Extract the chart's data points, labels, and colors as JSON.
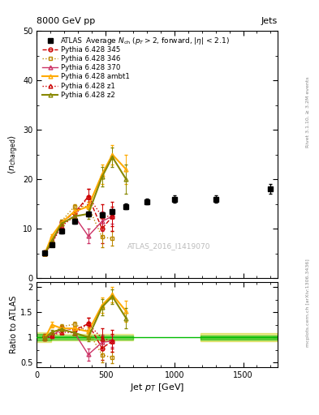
{
  "title_top": "8000 GeV pp",
  "title_right": "Jets",
  "plot_title": "Average N_{ch} (p_T>2, forward, |\\eta| < 2.1)",
  "ylabel_main": "\\langle n_{charged} \\rangle",
  "ylabel_ratio": "Ratio to ATLAS",
  "xlabel": "Jet p_{T} [GeV]",
  "watermark": "ATLAS_2016_I1419070",
  "right_label_top": "Rivet 3.1.10, ≥ 3.2M events",
  "right_label_bot": "mcplots.cern.ch [arXiv:1306.3436]",
  "atlas_x": [
    60,
    110,
    180,
    275,
    375,
    475,
    550,
    650,
    800,
    1000,
    1300,
    1700
  ],
  "atlas_y": [
    5.1,
    6.8,
    9.5,
    11.5,
    13.0,
    12.8,
    13.5,
    14.5,
    15.5,
    16.0,
    16.0,
    18.0
  ],
  "atlas_yerr": [
    0.3,
    0.4,
    0.5,
    0.5,
    0.5,
    0.5,
    0.5,
    0.6,
    0.6,
    0.7,
    0.8,
    1.0
  ],
  "py345_x": [
    60,
    110,
    180,
    275,
    375,
    475,
    550
  ],
  "py345_y": [
    5.2,
    7.2,
    11.3,
    13.2,
    16.5,
    10.0,
    12.5
  ],
  "py345_yerr": [
    0.2,
    0.3,
    0.4,
    0.5,
    1.5,
    3.0,
    2.0
  ],
  "py345_color": "#cc0000",
  "py345_marker": "o",
  "py345_style": "--",
  "py346_x": [
    60,
    110,
    180,
    275,
    375,
    475,
    550
  ],
  "py346_y": [
    5.2,
    7.2,
    11.5,
    14.5,
    14.5,
    8.3,
    8.0
  ],
  "py346_yerr": [
    0.2,
    0.3,
    0.4,
    0.5,
    1.0,
    2.0,
    1.5
  ],
  "py346_color": "#bb8800",
  "py346_marker": "s",
  "py346_style": ":",
  "py370_x": [
    60,
    110,
    180,
    275,
    375,
    475,
    550
  ],
  "py370_y": [
    5.0,
    7.0,
    11.0,
    12.5,
    8.5,
    11.5,
    12.5
  ],
  "py370_yerr": [
    0.2,
    0.3,
    0.4,
    0.5,
    1.5,
    2.0,
    1.5
  ],
  "py370_color": "#cc3366",
  "py370_marker": "^",
  "py370_style": "-",
  "pyambt1_x": [
    60,
    110,
    180,
    275,
    375,
    475,
    550,
    650
  ],
  "pyambt1_y": [
    5.0,
    8.5,
    11.2,
    13.5,
    14.5,
    21.0,
    25.0,
    22.0
  ],
  "pyambt1_yerr": [
    0.2,
    0.4,
    0.5,
    0.5,
    1.0,
    2.0,
    2.0,
    3.0
  ],
  "pyambt1_color": "#ffaa00",
  "pyambt1_marker": "^",
  "pyambt1_style": "-",
  "pyz1_x": [
    60,
    110,
    180,
    275,
    375,
    475,
    550
  ],
  "pyz1_y": [
    5.0,
    7.0,
    10.5,
    12.5,
    16.5,
    12.5,
    12.5
  ],
  "pyz1_yerr": [
    0.2,
    0.3,
    0.4,
    0.5,
    1.5,
    2.5,
    3.0
  ],
  "pyz1_color": "#cc0000",
  "pyz1_marker": "^",
  "pyz1_style": ":",
  "pyz2_x": [
    60,
    110,
    180,
    275,
    375,
    475,
    550,
    650
  ],
  "pyz2_y": [
    5.0,
    7.5,
    11.0,
    12.5,
    13.0,
    20.5,
    24.5,
    20.0
  ],
  "pyz2_yerr": [
    0.2,
    0.3,
    0.4,
    0.5,
    1.0,
    2.0,
    2.0,
    3.0
  ],
  "pyz2_color": "#888800",
  "pyz2_marker": "^",
  "pyz2_style": "-",
  "ylim_main": [
    0,
    50
  ],
  "ylim_ratio": [
    0.4,
    2.1
  ],
  "xlim": [
    0,
    1750
  ],
  "bg_color": "#ffffff",
  "atlas_band_color_inner": "#00bb00",
  "atlas_band_color_outer": "#cccc00",
  "yticks_main": [
    0,
    10,
    20,
    30,
    40,
    50
  ],
  "yticks_ratio": [
    0.5,
    1.0,
    1.5,
    2.0
  ],
  "xticks": [
    0,
    500,
    1000,
    1500
  ]
}
